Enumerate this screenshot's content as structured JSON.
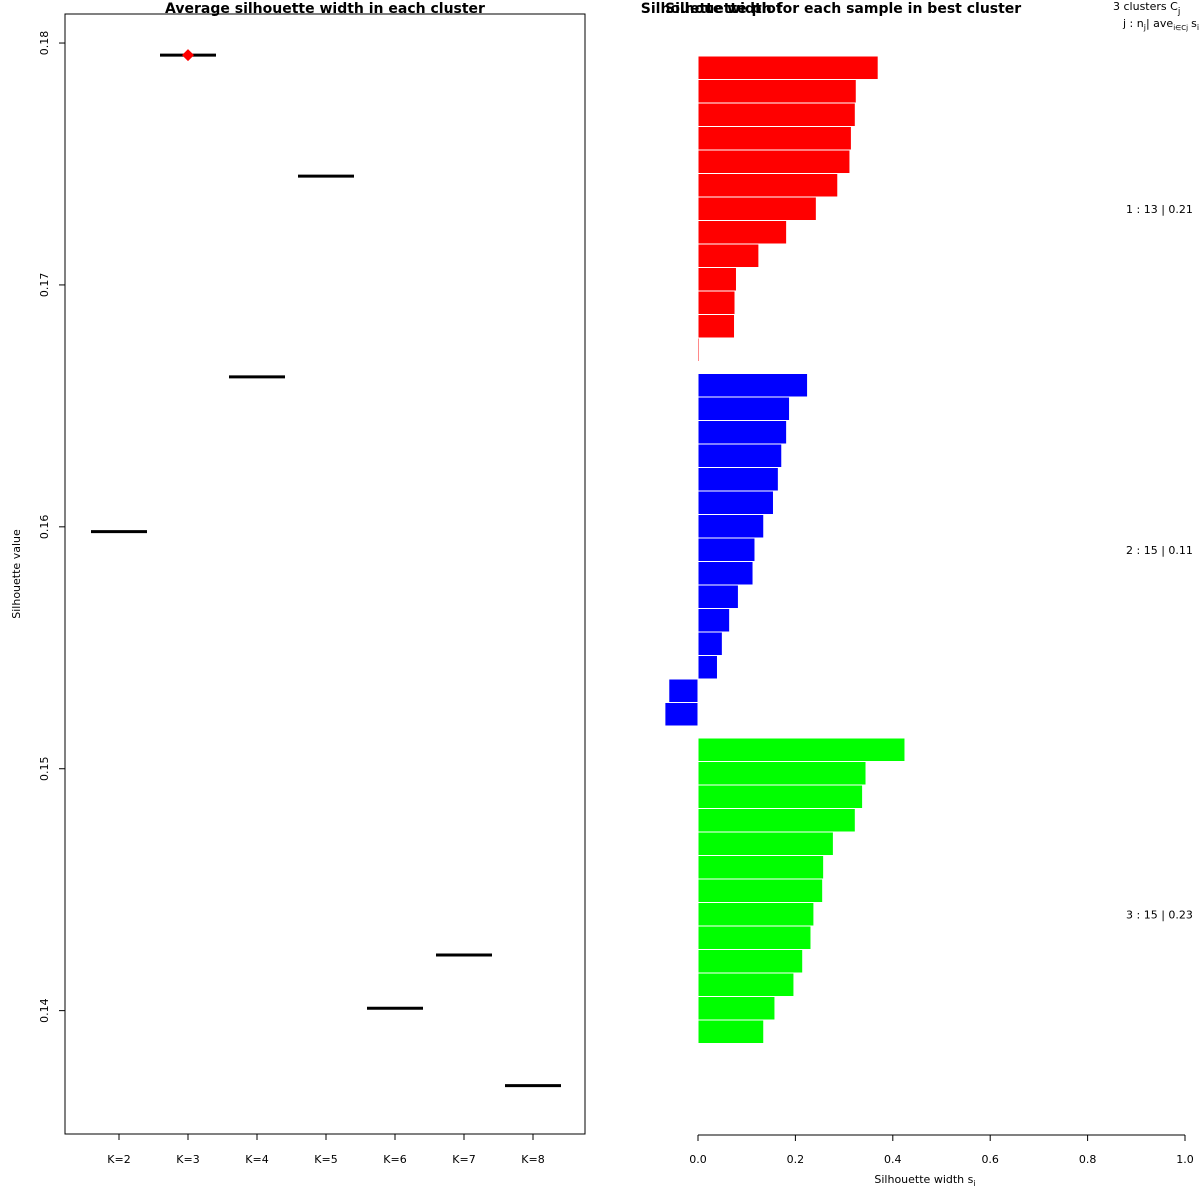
{
  "chart_data": [
    {
      "type": "errorbar",
      "title": "Average silhouette width in each cluster",
      "xlabel": "",
      "ylabel": "Silhouette value",
      "categories": [
        "K=2",
        "K=3",
        "K=4",
        "K=5",
        "K=6",
        "K=7",
        "K=8"
      ],
      "values": [
        0.1598,
        0.1795,
        0.1662,
        0.1745,
        0.1401,
        0.1423,
        0.1369
      ],
      "best_index": 1,
      "best_color": "#ff0000",
      "ylim": [
        0.1349,
        0.1812
      ],
      "yticks": [
        0.14,
        0.15,
        0.16,
        0.17,
        0.18
      ],
      "ytick_labels": [
        "0.14",
        "0.15",
        "0.16",
        "0.17",
        "0.18"
      ]
    },
    {
      "type": "silhouette",
      "title": "Silhouette width for each sample in best cluster",
      "title_overlap_text": "Silhouette plot",
      "xlabel_main": "Silhouette width s",
      "xlabel_sub": "i",
      "xlim": [
        0,
        1
      ],
      "xticks": [
        0.0,
        0.2,
        0.4,
        0.6,
        0.8,
        1.0
      ],
      "xtick_labels": [
        "0.0",
        "0.2",
        "0.4",
        "0.6",
        "0.8",
        "1.0"
      ],
      "header_line1": "3 clusters C",
      "header_line1_sub": "j",
      "header_line2": "j : n",
      "header_line2_sub": "j",
      "header_line2_rest": "| ave",
      "header_line2_sub2": "i∈Cj",
      "header_line2_end": "s",
      "header_line2_end_sub": "i",
      "clusters": [
        {
          "id": 1,
          "n": 13,
          "avg": 0.21,
          "color": "#ff0000",
          "label": "1 :  13  |  0.21",
          "values": [
            0.37,
            0.325,
            0.323,
            0.315,
            0.312,
            0.287,
            0.243,
            0.182,
            0.125,
            0.079,
            0.076,
            0.075,
            0.003
          ]
        },
        {
          "id": 2,
          "n": 15,
          "avg": 0.11,
          "color": "#0000ff",
          "label": "2 :  15  |  0.11",
          "values": [
            0.225,
            0.188,
            0.182,
            0.172,
            0.165,
            0.155,
            0.135,
            0.117,
            0.113,
            0.083,
            0.065,
            0.05,
            0.04,
            -0.06,
            -0.068
          ]
        },
        {
          "id": 3,
          "n": 15,
          "avg": 0.23,
          "color": "#00ff00",
          "label": "3 :  15  |  0.23",
          "values": [
            0.425,
            0.345,
            0.338,
            0.323,
            0.278,
            0.258,
            0.256,
            0.238,
            0.232,
            0.215,
            0.197,
            0.158,
            0.135,
            0.002,
            0.001
          ]
        }
      ]
    }
  ]
}
